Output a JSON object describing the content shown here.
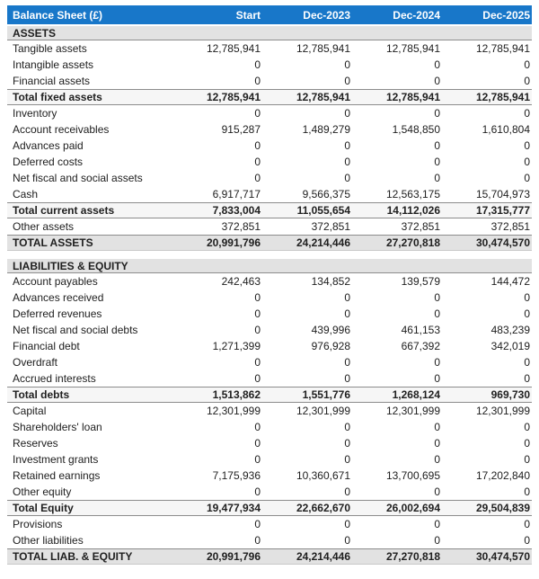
{
  "table": {
    "title": "Balance Sheet (£)",
    "columns": [
      "Start",
      "Dec-2023",
      "Dec-2024",
      "Dec-2025"
    ],
    "sections": [
      {
        "header": "ASSETS",
        "rows": [
          {
            "label": "Tangible assets",
            "style": "normal",
            "values": [
              "12,785,941",
              "12,785,941",
              "12,785,941",
              "12,785,941"
            ]
          },
          {
            "label": "Intangible assets",
            "style": "normal",
            "values": [
              "0",
              "0",
              "0",
              "0"
            ]
          },
          {
            "label": "Financial assets",
            "style": "normal",
            "values": [
              "0",
              "0",
              "0",
              "0"
            ]
          },
          {
            "label": "Total fixed assets",
            "style": "subtotal",
            "values": [
              "12,785,941",
              "12,785,941",
              "12,785,941",
              "12,785,941"
            ]
          },
          {
            "label": "Inventory",
            "style": "normal",
            "values": [
              "0",
              "0",
              "0",
              "0"
            ]
          },
          {
            "label": "Account receivables",
            "style": "normal",
            "values": [
              "915,287",
              "1,489,279",
              "1,548,850",
              "1,610,804"
            ]
          },
          {
            "label": "Advances paid",
            "style": "normal",
            "values": [
              "0",
              "0",
              "0",
              "0"
            ]
          },
          {
            "label": "Deferred costs",
            "style": "normal",
            "values": [
              "0",
              "0",
              "0",
              "0"
            ]
          },
          {
            "label": "Net fiscal and social assets",
            "style": "normal",
            "values": [
              "0",
              "0",
              "0",
              "0"
            ]
          },
          {
            "label": "Cash",
            "style": "normal",
            "values": [
              "6,917,717",
              "9,566,375",
              "12,563,175",
              "15,704,973"
            ]
          },
          {
            "label": "Total current assets",
            "style": "subtotal",
            "values": [
              "7,833,004",
              "11,055,654",
              "14,112,026",
              "17,315,777"
            ]
          },
          {
            "label": "Other assets",
            "style": "normal",
            "values": [
              "372,851",
              "372,851",
              "372,851",
              "372,851"
            ]
          },
          {
            "label": "TOTAL ASSETS",
            "style": "total",
            "values": [
              "20,991,796",
              "24,214,446",
              "27,270,818",
              "30,474,570"
            ]
          }
        ]
      },
      {
        "header": "LIABILITIES & EQUITY",
        "rows": [
          {
            "label": "Account payables",
            "style": "normal",
            "values": [
              "242,463",
              "134,852",
              "139,579",
              "144,472"
            ]
          },
          {
            "label": "Advances received",
            "style": "normal",
            "values": [
              "0",
              "0",
              "0",
              "0"
            ]
          },
          {
            "label": "Deferred revenues",
            "style": "normal",
            "values": [
              "0",
              "0",
              "0",
              "0"
            ]
          },
          {
            "label": "Net fiscal and social debts",
            "style": "normal",
            "values": [
              "0",
              "439,996",
              "461,153",
              "483,239"
            ]
          },
          {
            "label": "Financial debt",
            "style": "normal",
            "values": [
              "1,271,399",
              "976,928",
              "667,392",
              "342,019"
            ]
          },
          {
            "label": "Overdraft",
            "style": "normal",
            "values": [
              "0",
              "0",
              "0",
              "0"
            ]
          },
          {
            "label": "Accrued interests",
            "style": "normal",
            "values": [
              "0",
              "0",
              "0",
              "0"
            ]
          },
          {
            "label": "Total debts",
            "style": "subtotal",
            "values": [
              "1,513,862",
              "1,551,776",
              "1,268,124",
              "969,730"
            ]
          },
          {
            "label": "Capital",
            "style": "normal",
            "values": [
              "12,301,999",
              "12,301,999",
              "12,301,999",
              "12,301,999"
            ]
          },
          {
            "label": "Shareholders' loan",
            "style": "normal",
            "values": [
              "0",
              "0",
              "0",
              "0"
            ]
          },
          {
            "label": "Reserves",
            "style": "normal",
            "values": [
              "0",
              "0",
              "0",
              "0"
            ]
          },
          {
            "label": "Investment grants",
            "style": "normal",
            "values": [
              "0",
              "0",
              "0",
              "0"
            ]
          },
          {
            "label": "Retained earnings",
            "style": "normal",
            "values": [
              "7,175,936",
              "10,360,671",
              "13,700,695",
              "17,202,840"
            ]
          },
          {
            "label": "Other equity",
            "style": "normal",
            "values": [
              "0",
              "0",
              "0",
              "0"
            ]
          },
          {
            "label": "Total Equity",
            "style": "subtotal",
            "values": [
              "19,477,934",
              "22,662,670",
              "26,002,694",
              "29,504,839"
            ]
          },
          {
            "label": "Provisions",
            "style": "normal",
            "values": [
              "0",
              "0",
              "0",
              "0"
            ]
          },
          {
            "label": "Other liabilities",
            "style": "normal",
            "values": [
              "0",
              "0",
              "0",
              "0"
            ]
          },
          {
            "label": "TOTAL LIAB. & EQUITY",
            "style": "total",
            "values": [
              "20,991,796",
              "24,214,446",
              "27,270,818",
              "30,474,570"
            ]
          }
        ]
      }
    ]
  },
  "colors": {
    "header_bg": "#1877c9",
    "header_text": "#ffffff",
    "section_bg": "#e2e2e2",
    "subtotal_bg": "#f6f6f6",
    "total_bg": "#e2e2e2",
    "border_dark": "#8c8c8c"
  }
}
